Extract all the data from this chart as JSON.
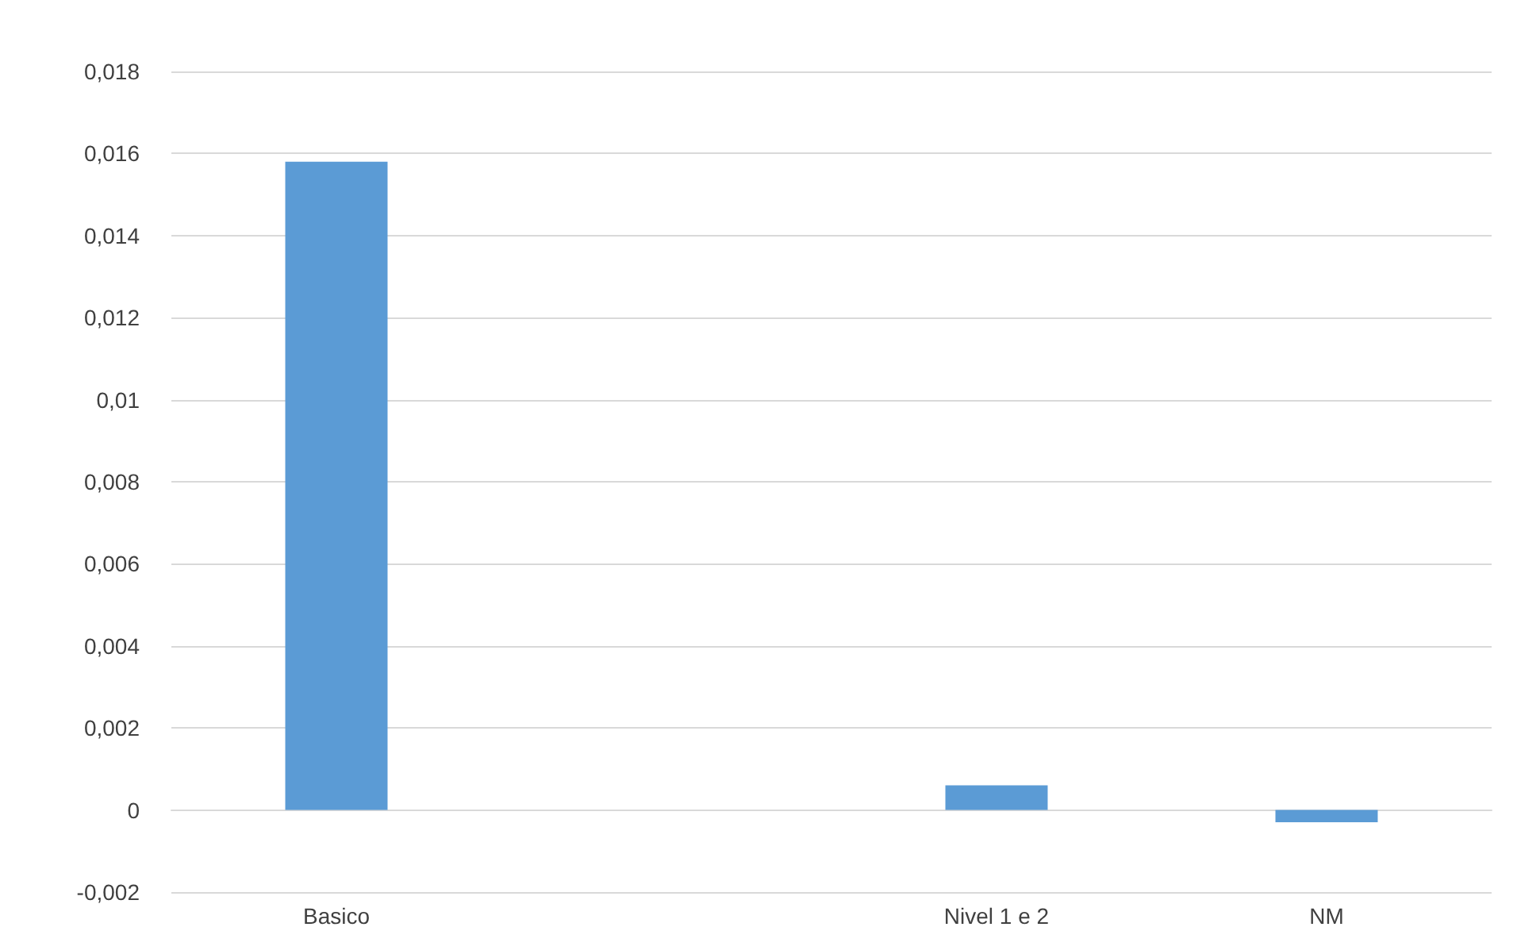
{
  "chart_data": {
    "type": "bar",
    "categories": [
      "Basico",
      null,
      "Nivel 1 e 2",
      "NM"
    ],
    "values": [
      0.0158,
      0,
      0.0006,
      -0.0003
    ],
    "color": "#5b9bd5",
    "ylim": [
      -0.002,
      0.018
    ],
    "yticks": [
      {
        "value": -0.002,
        "label": "-0,002"
      },
      {
        "value": 0,
        "label": "0"
      },
      {
        "value": 0.002,
        "label": "0,002"
      },
      {
        "value": 0.004,
        "label": "0,004"
      },
      {
        "value": 0.006,
        "label": "0,006"
      },
      {
        "value": 0.008,
        "label": "0,008"
      },
      {
        "value": 0.01,
        "label": "0,01"
      },
      {
        "value": 0.012,
        "label": "0,012"
      },
      {
        "value": 0.014,
        "label": "0,014"
      },
      {
        "value": 0.016,
        "label": "0,016"
      },
      {
        "value": 0.018,
        "label": "0,018"
      }
    ],
    "grid": "y"
  }
}
